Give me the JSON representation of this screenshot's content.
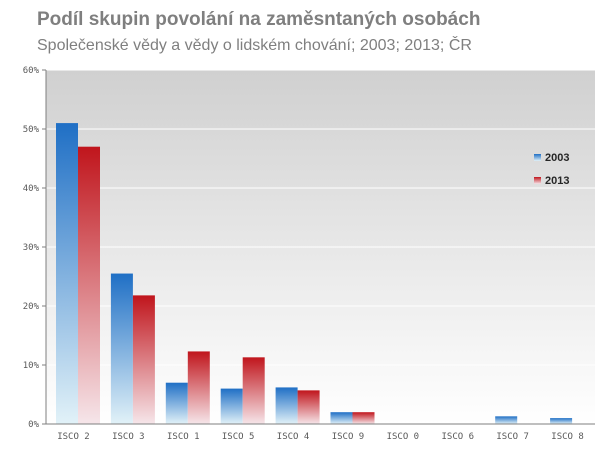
{
  "chart_data": {
    "type": "bar",
    "title": "Podíl skupin povolání na zaměsntaných osobách",
    "subtitle": "Společenské vědy a vědy o lidském chování; 2003; 2013; ČR",
    "categories": [
      "ISCO 2",
      "ISCO 3",
      "ISCO 1",
      "ISCO 5",
      "ISCO 4",
      "ISCO 9",
      "ISCO 0",
      "ISCO 6",
      "ISCO 7",
      "ISCO 8"
    ],
    "series": [
      {
        "name": "2003",
        "color": "#1f6fc5",
        "values": [
          51.0,
          25.5,
          7.0,
          6.0,
          6.2,
          2.0,
          0,
          0,
          1.3,
          1.0
        ]
      },
      {
        "name": "2013",
        "color": "#c0151c",
        "values": [
          47.0,
          21.8,
          12.3,
          11.3,
          5.7,
          2.0,
          0,
          0,
          0,
          0
        ]
      }
    ],
    "ylim": [
      0,
      60
    ],
    "yticks": [
      0,
      10,
      20,
      30,
      40,
      50,
      60
    ],
    "ytick_suffix": "%",
    "legend_position": "right"
  }
}
